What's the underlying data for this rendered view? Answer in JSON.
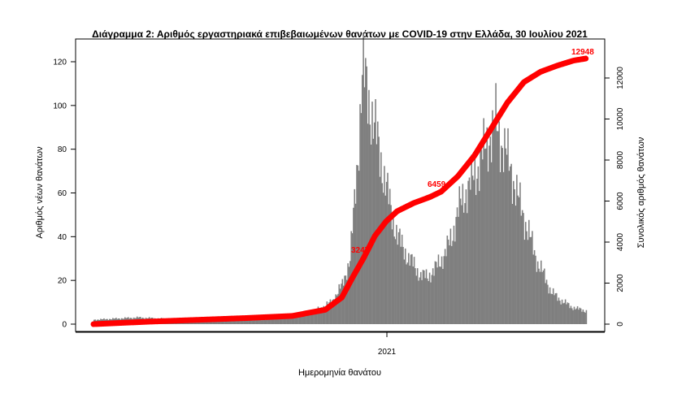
{
  "chart_data": {
    "type": "bar",
    "title": "Διάγραμμα 2: Αριθμός εργαστηριακά επιβεβαιωμένων θανάτων με COVID-19 στην Ελλάδα, 30 Ιουλίου 2021",
    "xlabel": "Ημερομηνία θανάτου",
    "ylabel": "Αριθμός νέων θανάτων",
    "y2label": "Συνολικός αριθμός θανάτων",
    "x_tick_labels": [
      "2021"
    ],
    "y_ticks": [
      0,
      20,
      40,
      60,
      80,
      100,
      120
    ],
    "y2_ticks": [
      0,
      2000,
      4000,
      6000,
      8000,
      10000,
      12000
    ],
    "ylim": [
      0,
      125
    ],
    "y2lim": [
      0,
      13000
    ],
    "bar_color": "#7f7f7f",
    "line_color": "#ff0000",
    "series": [
      {
        "name": "",
        "type": "bar",
        "axis": "left",
        "anchors": [
          [
            0,
            2
          ],
          [
            40,
            3
          ],
          [
            80,
            2
          ],
          [
            120,
            2
          ],
          [
            150,
            2
          ],
          [
            170,
            3
          ],
          [
            180,
            4
          ],
          [
            200,
            6
          ],
          [
            215,
            10
          ],
          [
            225,
            18
          ],
          [
            232,
            30
          ],
          [
            236,
            55
          ],
          [
            240,
            85
          ],
          [
            243,
            115
          ],
          [
            246,
            110
          ],
          [
            250,
            100
          ],
          [
            255,
            88
          ],
          [
            260,
            75
          ],
          [
            265,
            62
          ],
          [
            270,
            50
          ],
          [
            275,
            40
          ],
          [
            280,
            35
          ],
          [
            285,
            30
          ],
          [
            290,
            27
          ],
          [
            296,
            22
          ],
          [
            302,
            22
          ],
          [
            308,
            24
          ],
          [
            312,
            28
          ],
          [
            318,
            32
          ],
          [
            324,
            40
          ],
          [
            330,
            52
          ],
          [
            336,
            60
          ],
          [
            342,
            65
          ],
          [
            348,
            72
          ],
          [
            354,
            80
          ],
          [
            360,
            88
          ],
          [
            364,
            92
          ],
          [
            368,
            85
          ],
          [
            372,
            80
          ],
          [
            378,
            70
          ],
          [
            384,
            58
          ],
          [
            390,
            48
          ],
          [
            396,
            38
          ],
          [
            402,
            28
          ],
          [
            408,
            22
          ],
          [
            414,
            15
          ],
          [
            420,
            12
          ],
          [
            426,
            10
          ],
          [
            432,
            8
          ],
          [
            438,
            7
          ],
          [
            446,
            6
          ]
        ],
        "days": 447
      },
      {
        "name": "",
        "type": "line",
        "axis": "right",
        "anchors": [
          [
            0,
            0
          ],
          [
            50,
            120
          ],
          [
            100,
            220
          ],
          [
            140,
            300
          ],
          [
            180,
            400
          ],
          [
            210,
            700
          ],
          [
            225,
            1300
          ],
          [
            235,
            2300
          ],
          [
            245,
            3247
          ],
          [
            255,
            4300
          ],
          [
            265,
            5000
          ],
          [
            275,
            5500
          ],
          [
            290,
            5900
          ],
          [
            305,
            6200
          ],
          [
            315,
            6459
          ],
          [
            330,
            7200
          ],
          [
            345,
            8200
          ],
          [
            360,
            9500
          ],
          [
            375,
            10800
          ],
          [
            390,
            11800
          ],
          [
            405,
            12300
          ],
          [
            420,
            12600
          ],
          [
            435,
            12850
          ],
          [
            446,
            12948
          ]
        ],
        "days": 447
      }
    ],
    "annotations": [
      "12948",
      "6459",
      "3247"
    ],
    "grid": false
  }
}
